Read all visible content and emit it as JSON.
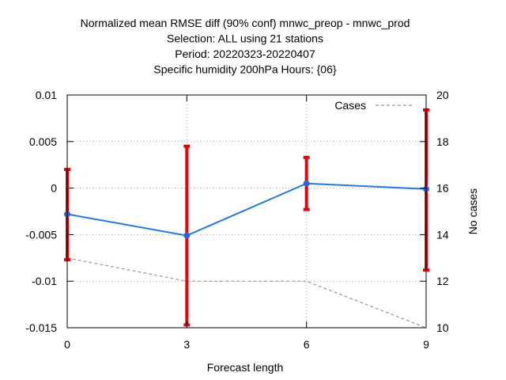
{
  "chart_data": {
    "type": "line",
    "title_lines": [
      "Normalized mean RMSE diff (90% conf) mnwc_preop - mnwc_prod",
      "Selection: ALL using    21 stations",
      "Period: 20220323-20220407",
      "Specific humidity 200hPa   Hours: {06}"
    ],
    "xlabel": "Forecast length",
    "ylabel_right": "No cases",
    "ylabel": "",
    "x": [
      0,
      3,
      6,
      9
    ],
    "xticks": [
      "0",
      "3",
      "6",
      "9"
    ],
    "xlim": [
      0,
      9
    ],
    "ylim": [
      -0.015,
      0.01
    ],
    "yticks": [
      "-0.015",
      "-0.01",
      "-0.005",
      "0",
      "0.005",
      "0.01"
    ],
    "y2lim": [
      10,
      20
    ],
    "y2ticks": [
      "10",
      "12",
      "14",
      "16",
      "18",
      "20"
    ],
    "grid": true,
    "legend_position": "top-right",
    "series": [
      {
        "kind": "mean_with_errorbars",
        "color": "#1f7be0",
        "marker_color": "#3a5fcd",
        "errorbar_color": "#e8000b",
        "values": [
          -0.0028,
          -0.0051,
          0.0005,
          -0.0001
        ],
        "lower": [
          -0.0077,
          -0.0147,
          -0.0023,
          -0.0088
        ],
        "upper": [
          0.002,
          0.0045,
          0.0033,
          0.0084
        ]
      },
      {
        "name": "Cases",
        "axis": "y2",
        "style": "dashed",
        "color": "#999999",
        "values": [
          13,
          12,
          12,
          10
        ]
      }
    ]
  }
}
